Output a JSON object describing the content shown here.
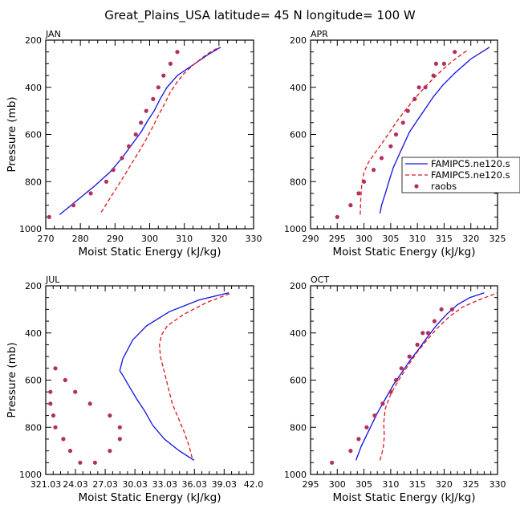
{
  "figure_title": "Great_Plains_USA  latitude= 45 N longitude= 100 W",
  "legend_entries": [
    "FAMIPC5.ne120.s",
    "FAMIPC5.ne120.s",
    "raobs"
  ],
  "colors": {
    "model1": "#1010e0",
    "model2": "#e01818",
    "raobs": "#b03060"
  },
  "chart_data": [
    {
      "type": "line",
      "panel_label": "JAN",
      "xlabel": "Moist Static Energy (kJ/kg)",
      "ylabel": "Pressure (mb)",
      "xlim": [
        270,
        330
      ],
      "xticks": [
        270,
        280,
        290,
        300,
        310,
        320,
        330
      ],
      "xtick_labels": [
        "270",
        "280",
        "290",
        "300",
        "310",
        "320",
        "330"
      ],
      "ylim": [
        1000,
        200
      ],
      "yticks": [
        200,
        400,
        600,
        800,
        1000
      ],
      "ytick_labels": [
        "200",
        "400",
        "600",
        "800",
        "1000"
      ],
      "series": [
        {
          "name": "FAMIPC5.ne120.s",
          "style": "solid",
          "color": "#1010e0",
          "x": [
            274,
            279,
            284,
            288.5,
            292,
            295,
            297.5,
            299.5,
            301.3,
            303,
            305,
            308,
            313,
            317,
            320.5
          ],
          "y": [
            940,
            880,
            820,
            760,
            700,
            640,
            590,
            540,
            500,
            450,
            400,
            350,
            300,
            260,
            230
          ]
        },
        {
          "name": "FAMIPC5.ne120.s",
          "style": "dashed",
          "color": "#e01818",
          "x": [
            286,
            289,
            292,
            294.5,
            297,
            299,
            300.8,
            302.5,
            304.3,
            306,
            307.8,
            310,
            313,
            316.5,
            320
          ],
          "y": [
            930,
            860,
            790,
            730,
            670,
            620,
            570,
            520,
            470,
            420,
            380,
            340,
            300,
            260,
            230
          ]
        }
      ],
      "points": {
        "name": "raobs",
        "color": "#b03060",
        "x": [
          271,
          278,
          283,
          287.5,
          289.5,
          292,
          294,
          296,
          297.5,
          299,
          301,
          302.5,
          304,
          306,
          308
        ],
        "y": [
          950,
          900,
          850,
          800,
          750,
          700,
          650,
          600,
          550,
          500,
          450,
          400,
          350,
          300,
          250
        ]
      },
      "legend": false
    },
    {
      "type": "line",
      "panel_label": "APR",
      "xlabel": "Moist Static Energy (kJ/kg)",
      "ylabel": "",
      "xlim": [
        290,
        325
      ],
      "xticks": [
        290,
        295,
        300,
        305,
        310,
        315,
        320,
        325
      ],
      "xtick_labels": [
        "290",
        "295",
        "300",
        "305",
        "310",
        "315",
        "320",
        "325"
      ],
      "ylim": [
        1000,
        200
      ],
      "yticks": [
        200,
        400,
        600,
        800,
        1000
      ],
      "ytick_labels": [
        "200",
        "400",
        "600",
        "800",
        "1000"
      ],
      "series": [
        {
          "name": "FAMIPC5.ne120.s",
          "style": "solid",
          "color": "#1010e0",
          "x": [
            303,
            303.3,
            304,
            304.8,
            305.5,
            306.5,
            307.5,
            308.5,
            310,
            311.5,
            313,
            314.8,
            317,
            320,
            323.5
          ],
          "y": [
            935,
            900,
            850,
            790,
            740,
            690,
            640,
            590,
            540,
            490,
            440,
            390,
            340,
            280,
            230
          ]
        },
        {
          "name": "FAMIPC5.ne120.s",
          "style": "dashed",
          "color": "#e01818",
          "x": [
            299.3,
            299.4,
            299.6,
            300,
            300.8,
            302,
            303.3,
            304.8,
            306.3,
            308,
            309.8,
            311.8,
            314,
            316.5,
            319.5
          ],
          "y": [
            940,
            870,
            810,
            760,
            720,
            680,
            640,
            590,
            540,
            490,
            440,
            390,
            340,
            290,
            240
          ]
        }
      ],
      "points": {
        "name": "raobs",
        "color": "#b03060",
        "x": [
          295,
          297.5,
          299,
          300,
          301.8,
          303.3,
          305,
          306,
          307.3,
          308.2,
          309.5,
          310.3,
          311.5,
          313,
          313.5,
          315,
          317
        ],
        "y": [
          950,
          900,
          850,
          800,
          750,
          700,
          650,
          600,
          550,
          500,
          450,
          400,
          400,
          350,
          300,
          300,
          250
        ]
      },
      "legend": true
    },
    {
      "type": "line",
      "panel_label": "JUL",
      "xlabel": "Moist Static Energy (kJ/kg)",
      "ylabel": "Pressure (mb)",
      "xlim": [
        321.03,
        342.0
      ],
      "xticks": [
        321.03,
        324.03,
        327.03,
        330.03,
        333.03,
        336.03,
        339.03,
        342.0
      ],
      "xtick_labels": [
        "321.03",
        "24.03",
        "27.03",
        "30.03",
        "33.03",
        "36.03",
        "39.03",
        "42.0"
      ],
      "ylim": [
        1000,
        200
      ],
      "yticks": [
        200,
        400,
        600,
        800,
        1000
      ],
      "ytick_labels": [
        "200",
        "400",
        "600",
        "800",
        "1000"
      ],
      "series": [
        {
          "name": "FAMIPC5.ne120.s",
          "style": "solid",
          "color": "#1010e0",
          "x": [
            336,
            334.5,
            333,
            331.8,
            331,
            330.2,
            329.5,
            328.8,
            328.5,
            328.8,
            329.8,
            331.2,
            333.5,
            336.5,
            339.5
          ],
          "y": [
            940,
            900,
            850,
            790,
            730,
            680,
            630,
            580,
            560,
            510,
            430,
            370,
            310,
            260,
            230
          ]
        },
        {
          "name": "FAMIPC5.ne120.s",
          "style": "dashed",
          "color": "#e01818",
          "x": [
            335.8,
            335.5,
            335,
            334.3,
            333.8,
            333.5,
            333.2,
            332.9,
            332.6,
            332.5,
            332.7,
            333.3,
            335,
            337.3,
            339.8
          ],
          "y": [
            930,
            880,
            820,
            750,
            700,
            650,
            600,
            550,
            500,
            450,
            410,
            370,
            320,
            270,
            230
          ]
        }
      ],
      "points": {
        "name": "raobs",
        "color": "#b03060",
        "x": [
          321.5,
          321.5,
          321.8,
          322,
          322.8,
          323.5,
          324.5,
          326,
          327.5,
          328.5,
          328.5,
          327.5,
          325.5,
          324,
          323,
          322
        ],
        "y": [
          650,
          700,
          750,
          800,
          850,
          900,
          950,
          950,
          900,
          850,
          800,
          750,
          700,
          650,
          600,
          550
        ]
      },
      "legend": false
    },
    {
      "type": "line",
      "panel_label": "OCT",
      "xlabel": "Moist Static Energy (kJ/kg)",
      "ylabel": "",
      "xlim": [
        295,
        330
      ],
      "xticks": [
        295,
        300,
        305,
        310,
        315,
        320,
        325,
        330
      ],
      "xtick_labels": [
        "295",
        "300",
        "305",
        "310",
        "315",
        "320",
        "325",
        "330"
      ],
      "ylim": [
        1000,
        200
      ],
      "yticks": [
        200,
        400,
        600,
        800,
        1000
      ],
      "ytick_labels": [
        "200",
        "400",
        "600",
        "800",
        "1000"
      ],
      "series": [
        {
          "name": "FAMIPC5.ne120.s",
          "style": "solid",
          "color": "#1010e0",
          "x": [
            303.5,
            304.5,
            306,
            307.5,
            309,
            310.5,
            312,
            313.5,
            315.2,
            316.8,
            318.5,
            320.5,
            322.5,
            324.8,
            327.5
          ],
          "y": [
            940,
            880,
            810,
            740,
            680,
            620,
            570,
            520,
            470,
            420,
            370,
            320,
            280,
            250,
            230
          ]
        },
        {
          "name": "FAMIPC5.ne120.s",
          "style": "dashed",
          "color": "#e01818",
          "x": [
            308,
            308.6,
            308.8,
            308.7,
            309,
            310,
            311.5,
            313.2,
            315,
            316.8,
            318.7,
            321,
            323.5,
            326.5,
            330
          ],
          "y": [
            940,
            890,
            840,
            780,
            720,
            660,
            600,
            540,
            480,
            430,
            380,
            330,
            290,
            260,
            230
          ]
        }
      ],
      "points": {
        "name": "raobs",
        "color": "#b03060",
        "x": [
          299,
          302.5,
          304,
          305.5,
          307,
          308.5,
          310,
          311,
          312,
          313.5,
          315,
          316,
          317,
          318.2,
          319.5,
          321.5
        ],
        "y": [
          950,
          900,
          850,
          800,
          750,
          700,
          650,
          600,
          550,
          500,
          450,
          400,
          400,
          350,
          300,
          300
        ]
      },
      "legend": false
    }
  ]
}
